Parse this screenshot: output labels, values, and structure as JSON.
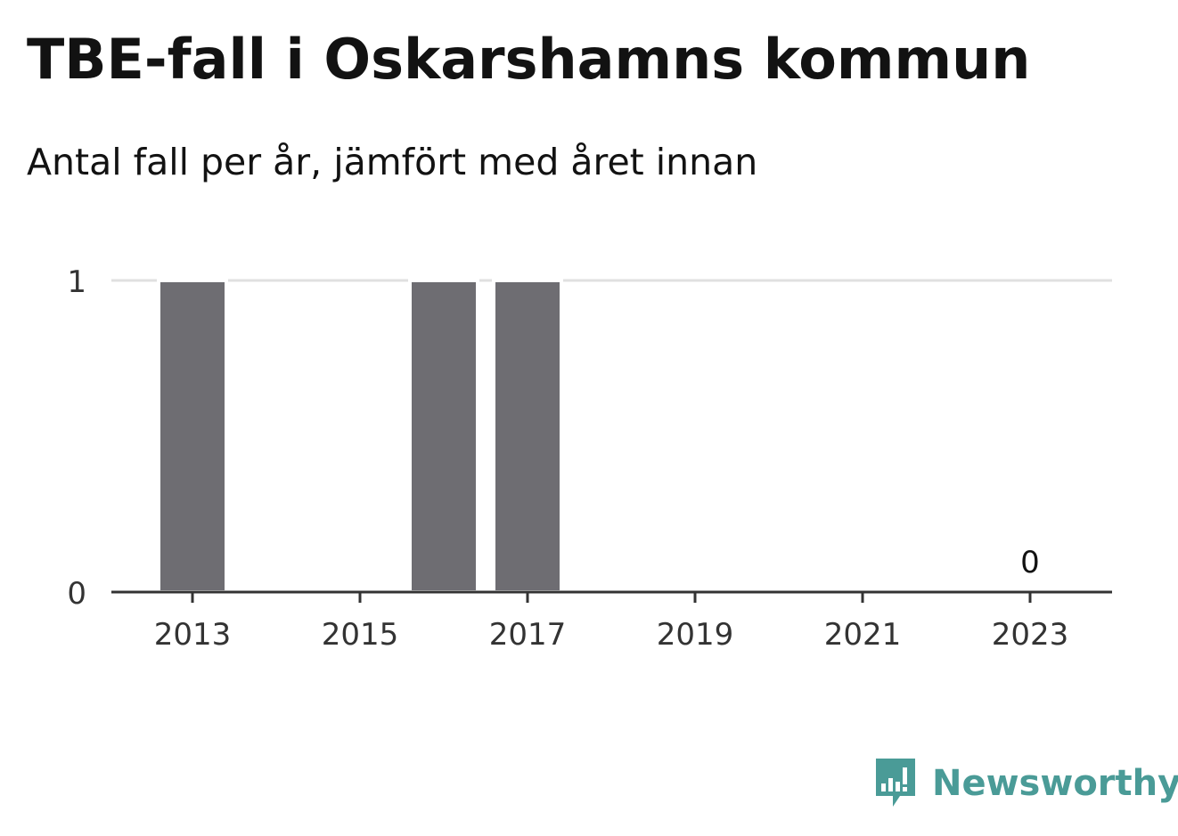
{
  "title": "TBE-fall i Oskarshamns kommun",
  "subtitle": "Antal fall per år, jämfört med året innan",
  "brand": "Newsworthy",
  "colors": {
    "bar": "#6e6d72",
    "grid": "#e0e0e0",
    "axis": "#333333",
    "brand": "#4a9b97"
  },
  "chart_data": {
    "type": "bar",
    "categories": [
      "2013",
      "2014",
      "2015",
      "2016",
      "2017",
      "2018",
      "2019",
      "2020",
      "2021",
      "2022",
      "2023"
    ],
    "values": [
      1,
      0,
      0,
      1,
      1,
      0,
      0,
      0,
      0,
      0,
      0
    ],
    "x_tick_labels": [
      "2013",
      "2015",
      "2017",
      "2019",
      "2021",
      "2023"
    ],
    "y_ticks": [
      0,
      1
    ],
    "ylim": [
      0,
      1
    ],
    "annotations": [
      {
        "category": "2023",
        "text": "0"
      }
    ],
    "xlabel": "",
    "ylabel": "",
    "grid": true,
    "legend": "none"
  }
}
